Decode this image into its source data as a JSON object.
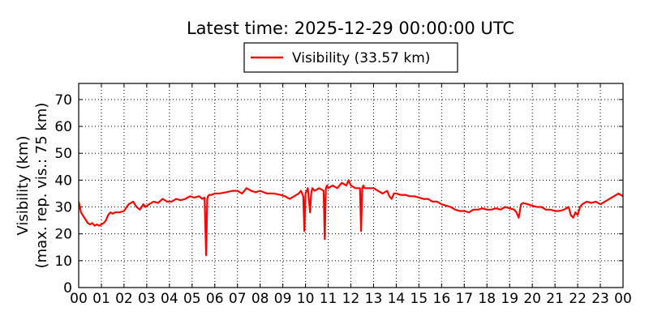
{
  "chart_data": {
    "type": "line",
    "title": "Latest time: 2025-12-29 00:00:00 UTC",
    "ylabel_line1": "Visibility (km)",
    "ylabel_line2": "(max. rep. vis.: 75 km)",
    "xlabel": "",
    "ylim": [
      0,
      76
    ],
    "xlim": [
      0,
      24
    ],
    "grid": true,
    "legend": {
      "placement": "top-center",
      "entries": [
        {
          "label": "Visibility (33.57 km)",
          "color": "#ff0000"
        }
      ]
    },
    "yticks": [
      0,
      10,
      20,
      30,
      40,
      50,
      60,
      70
    ],
    "xtick_labels": [
      "00",
      "01",
      "02",
      "03",
      "04",
      "05",
      "06",
      "07",
      "08",
      "09",
      "10",
      "11",
      "12",
      "13",
      "14",
      "15",
      "16",
      "17",
      "18",
      "19",
      "20",
      "21",
      "22",
      "23",
      "00"
    ],
    "series": [
      {
        "color": "#ff0000",
        "x": [
          0.0,
          0.1,
          0.25,
          0.4,
          0.5,
          0.6,
          0.7,
          0.8,
          0.9,
          1.0,
          1.1,
          1.2,
          1.3,
          1.4,
          1.5,
          1.6,
          1.8,
          2.0,
          2.2,
          2.4,
          2.55,
          2.7,
          2.85,
          2.95,
          3.1,
          3.3,
          3.5,
          3.7,
          3.9,
          4.1,
          4.3,
          4.5,
          4.7,
          4.9,
          5.1,
          5.3,
          5.45,
          5.55,
          5.62,
          5.67,
          5.7,
          5.75,
          5.85,
          6.0,
          6.2,
          6.5,
          6.8,
          7.0,
          7.2,
          7.4,
          7.6,
          7.8,
          8.0,
          8.3,
          8.6,
          8.9,
          9.1,
          9.3,
          9.5,
          9.7,
          9.8,
          9.9,
          9.95,
          10.0,
          10.05,
          10.1,
          10.2,
          10.25,
          10.3,
          10.4,
          10.6,
          10.8,
          10.85,
          10.9,
          10.95,
          11.0,
          11.2,
          11.4,
          11.6,
          11.8,
          11.9,
          12.0,
          12.2,
          12.4,
          12.45,
          12.5,
          12.55,
          12.6,
          12.8,
          13.0,
          13.2,
          13.4,
          13.6,
          13.7,
          13.8,
          13.9,
          14.0,
          14.2,
          14.4,
          14.6,
          14.8,
          15.0,
          15.2,
          15.4,
          15.6,
          15.8,
          16.0,
          16.2,
          16.4,
          16.6,
          16.8,
          17.0,
          17.2,
          17.4,
          17.6,
          17.8,
          18.0,
          18.2,
          18.4,
          18.6,
          18.8,
          19.0,
          19.2,
          19.3,
          19.4,
          19.5,
          19.6,
          19.8,
          20.0,
          20.2,
          20.4,
          20.6,
          20.8,
          21.0,
          21.2,
          21.4,
          21.5,
          21.6,
          21.7,
          21.8,
          21.9,
          22.0,
          22.1,
          22.2,
          22.3,
          22.4,
          22.6,
          22.8,
          23.0,
          23.2,
          23.4,
          23.6,
          23.8,
          24.0
        ],
        "y": [
          32,
          28,
          26,
          24,
          23.5,
          24,
          23,
          23.5,
          23,
          23.5,
          24,
          25,
          27,
          28,
          27.5,
          28,
          28,
          28.5,
          31,
          32,
          30,
          29,
          31,
          30,
          31,
          32,
          31.5,
          33,
          32,
          32,
          33,
          32.5,
          33,
          34,
          33.5,
          34,
          33,
          33.5,
          12,
          33,
          34,
          34.5,
          34.5,
          35,
          35,
          35.5,
          36,
          36,
          35,
          37,
          36,
          35.5,
          36,
          35,
          35,
          34.5,
          34,
          33,
          34,
          35,
          36,
          34,
          21,
          35,
          36,
          37,
          28,
          35,
          37,
          36,
          37,
          36,
          18,
          37,
          38,
          37,
          38,
          37,
          39,
          38,
          40,
          38,
          37,
          37,
          21,
          37,
          38,
          37,
          37,
          37,
          36,
          35,
          36,
          34,
          33,
          35,
          35,
          34.5,
          34.5,
          34,
          34,
          33.5,
          33,
          33,
          32,
          32,
          31,
          30.5,
          30,
          29,
          28.5,
          28.5,
          28,
          29,
          29,
          29.5,
          29,
          29,
          29.5,
          29,
          30,
          29.5,
          29,
          28,
          26,
          31,
          31.5,
          31,
          30.5,
          30,
          30,
          29,
          29,
          28.5,
          28.5,
          29,
          29.5,
          30,
          27,
          26,
          28,
          27,
          30,
          31,
          31.5,
          32,
          31.5,
          32,
          31,
          32,
          33,
          34,
          35,
          34
        ]
      }
    ]
  }
}
